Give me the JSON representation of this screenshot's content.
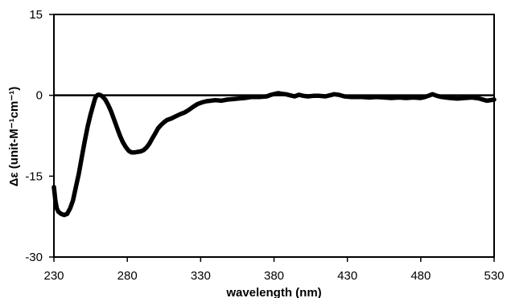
{
  "chart_data": {
    "type": "line",
    "title": "",
    "xlabel": "wavelength (nm)",
    "ylabel": "Δε (unit-M⁻¹cm⁻¹)",
    "xlim": [
      230,
      530
    ],
    "ylim": [
      -30,
      15
    ],
    "x_ticks": [
      230,
      280,
      330,
      380,
      430,
      480,
      530
    ],
    "y_ticks": [
      -30,
      -15,
      0,
      15
    ],
    "grid": false,
    "legend": "none",
    "zero_line": true,
    "line_color": "#000000",
    "series": [
      {
        "x": [
          230,
          231,
          232,
          233,
          235,
          237,
          239,
          241,
          243,
          245,
          247,
          249,
          251,
          253,
          255,
          257,
          258,
          259,
          260,
          261,
          262,
          263,
          265,
          267,
          269,
          271,
          273,
          275,
          277,
          279,
          281,
          283,
          285,
          287,
          289,
          291,
          293,
          295,
          297,
          299,
          301,
          303,
          305,
          307,
          310,
          313,
          316,
          319,
          322,
          325,
          328,
          331,
          334,
          337,
          340,
          344,
          348,
          352,
          356,
          360,
          365,
          370,
          375,
          378,
          381,
          383,
          385,
          388,
          391,
          394,
          397,
          400,
          403,
          407,
          411,
          415,
          418,
          421,
          424,
          428,
          432,
          436,
          440,
          445,
          450,
          455,
          460,
          465,
          470,
          475,
          480,
          483,
          486,
          488,
          491,
          494,
          497,
          500,
          505,
          510,
          515,
          520,
          525,
          530
        ],
        "values": [
          -17.0,
          -19.5,
          -21.0,
          -21.6,
          -22.0,
          -22.2,
          -22.0,
          -21.0,
          -19.5,
          -17.0,
          -14.5,
          -11.5,
          -8.5,
          -5.8,
          -3.5,
          -1.6,
          -0.6,
          -0.1,
          0.1,
          0.1,
          0.0,
          -0.2,
          -0.8,
          -1.8,
          -3.0,
          -4.5,
          -6.0,
          -7.5,
          -8.7,
          -9.6,
          -10.3,
          -10.6,
          -10.6,
          -10.5,
          -10.4,
          -10.2,
          -9.7,
          -9.0,
          -8.0,
          -7.1,
          -6.1,
          -5.5,
          -5.0,
          -4.6,
          -4.3,
          -3.9,
          -3.5,
          -3.2,
          -2.7,
          -2.1,
          -1.6,
          -1.3,
          -1.1,
          -1.0,
          -0.9,
          -1.0,
          -0.8,
          -0.7,
          -0.6,
          -0.5,
          -0.3,
          -0.3,
          -0.2,
          0.1,
          0.3,
          0.4,
          0.3,
          0.2,
          0.0,
          -0.2,
          0.1,
          -0.1,
          -0.2,
          -0.1,
          -0.1,
          -0.2,
          0.0,
          0.2,
          0.1,
          -0.2,
          -0.3,
          -0.3,
          -0.3,
          -0.4,
          -0.3,
          -0.4,
          -0.5,
          -0.4,
          -0.5,
          -0.4,
          -0.5,
          -0.3,
          0.0,
          0.2,
          -0.1,
          -0.3,
          -0.4,
          -0.5,
          -0.6,
          -0.5,
          -0.4,
          -0.6,
          -1.0,
          -0.8
        ]
      }
    ]
  }
}
